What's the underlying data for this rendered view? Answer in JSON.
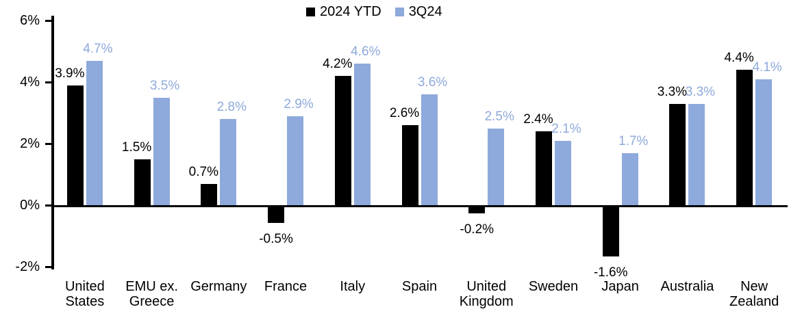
{
  "chart_data": {
    "type": "bar",
    "title": "",
    "categories": [
      "United\nStates",
      "EMU ex.\nGreece",
      "Germany",
      "France",
      "Italy",
      "Spain",
      "United\nKingdom",
      "Sweden",
      "Japan",
      "Australia",
      "New\nZealand"
    ],
    "series": [
      {
        "name": "2024 YTD",
        "color": "#000000",
        "values": [
          3.9,
          1.5,
          0.7,
          -0.5,
          4.2,
          2.6,
          -0.2,
          2.4,
          -1.6,
          3.3,
          4.4
        ],
        "labels": [
          "3.9%",
          "1.5%",
          "0.7%",
          "-0.5%",
          "4.2%",
          "2.6%",
          "-0.2%",
          "2.4%",
          "-1.6%",
          "3.3%",
          "4.4%"
        ]
      },
      {
        "name": "3Q24",
        "color": "#8EA9DB",
        "values": [
          4.7,
          3.5,
          2.8,
          2.9,
          4.6,
          3.6,
          2.5,
          2.1,
          1.7,
          3.3,
          4.1
        ],
        "labels": [
          "4.7%",
          "3.5%",
          "2.8%",
          "2.9%",
          "4.6%",
          "3.6%",
          "2.5%",
          "2.1%",
          "1.7%",
          "3.3%",
          "4.1%"
        ]
      }
    ],
    "y_axis": {
      "ticks": [
        {
          "label": "6%",
          "value": 6
        },
        {
          "label": "4%",
          "value": 4
        },
        {
          "label": "2%",
          "value": 2
        },
        {
          "label": "0%",
          "value": 0
        },
        {
          "label": "-2%",
          "value": -2
        }
      ],
      "ylim": [
        -2,
        6
      ]
    },
    "legend_position": "top-center",
    "grid": false
  }
}
